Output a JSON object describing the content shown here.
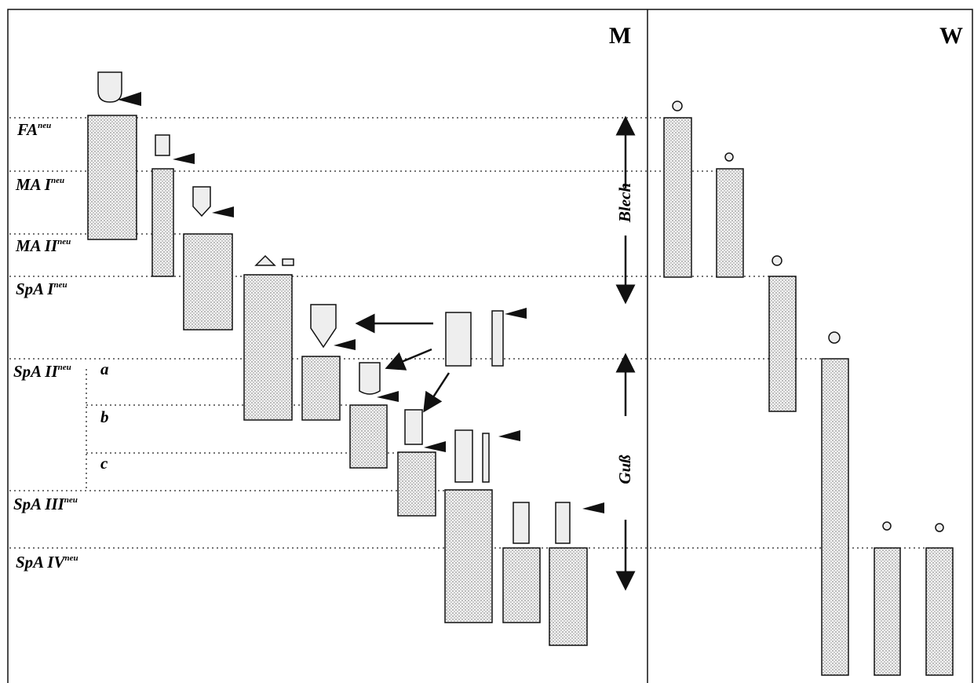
{
  "header": {
    "left": "M",
    "right": "W"
  },
  "phases": [
    {
      "name": "FA",
      "sup": "neu"
    },
    {
      "name": "MA I",
      "sup": "neu"
    },
    {
      "name": "MA II",
      "sup": "neu"
    },
    {
      "name": "SpA I",
      "sup": "neu"
    },
    {
      "name": "SpA II",
      "sup": "neu"
    },
    {
      "name": "SpA III",
      "sup": "neu"
    },
    {
      "name": "SpA IV",
      "sup": "neu"
    }
  ],
  "subphases": [
    "a",
    "b",
    "c"
  ],
  "arrows": {
    "upper": "Blech",
    "lower": "Guß"
  }
}
